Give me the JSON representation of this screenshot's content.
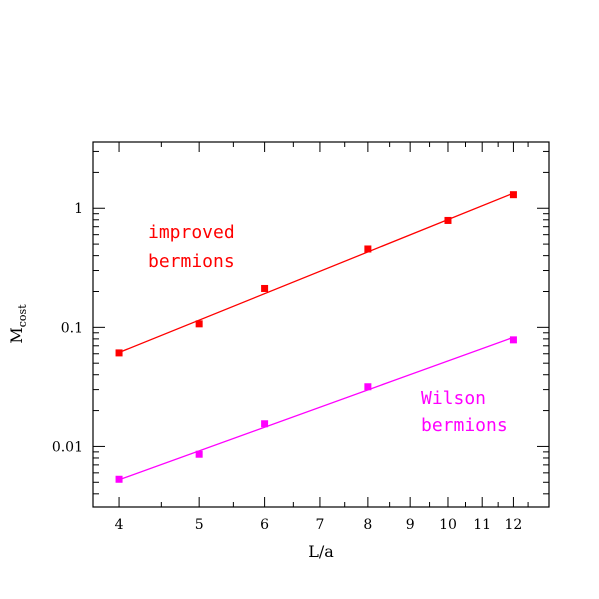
{
  "chart_data": {
    "type": "scatter",
    "xscale": "log",
    "yscale": "log",
    "xlabel": "L/a",
    "ylabel": {
      "main": "M",
      "sub": "cost"
    },
    "xlim": [
      3.72,
      13.25
    ],
    "ylim": [
      0.0031,
      3.6
    ],
    "x_major_ticks": [
      4,
      5,
      6,
      7,
      8,
      9,
      10,
      11,
      12
    ],
    "x_tick_labels": [
      "4",
      "5",
      "6",
      "7",
      "8",
      "9",
      "10",
      "11",
      "12"
    ],
    "y_major_ticks": [
      0.01,
      0.1,
      1
    ],
    "y_tick_labels": [
      "0.01",
      "0.1",
      "1"
    ],
    "grid": false,
    "legend": "none",
    "series": [
      {
        "color": "#ff0000",
        "marker": "square",
        "x": [
          4,
          5,
          6,
          8,
          10,
          12
        ],
        "values": [
          0.061,
          0.107,
          0.212,
          0.455,
          0.79,
          1.3
        ],
        "fit": {
          "x": [
            4,
            12
          ],
          "y": [
            0.0615,
            1.34
          ]
        }
      },
      {
        "color": "#ff00ff",
        "marker": "square",
        "x": [
          4,
          5,
          6,
          8,
          12
        ],
        "values": [
          0.0053,
          0.0086,
          0.0155,
          0.0317,
          0.0785
        ],
        "fit": {
          "x": [
            4,
            12
          ],
          "y": [
            0.00525,
            0.0825
          ]
        }
      }
    ],
    "annotations": [
      {
        "lines": [
          "improved",
          "bermions"
        ],
        "color": "#ff0000"
      },
      {
        "lines": [
          "Wilson",
          "bermions"
        ],
        "color": "#ff00ff"
      }
    ]
  }
}
